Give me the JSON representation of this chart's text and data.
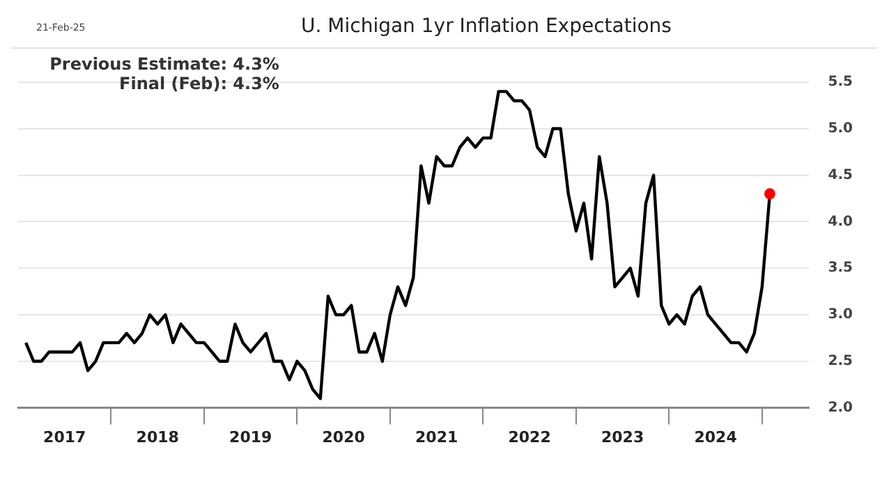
{
  "chart_data": {
    "type": "line",
    "title": "U. Michigan 1yr Inflation Expectations",
    "annotations": [
      "21-Feb-25",
      "Previous Estimate: 4.3%",
      "Final (Feb): 4.3%"
    ],
    "x": [
      "2017-02",
      "2017-03",
      "2017-04",
      "2017-05",
      "2017-06",
      "2017-07",
      "2017-08",
      "2017-09",
      "2017-10",
      "2017-11",
      "2017-12",
      "2018-01",
      "2018-02",
      "2018-03",
      "2018-04",
      "2018-05",
      "2018-06",
      "2018-07",
      "2018-08",
      "2018-09",
      "2018-10",
      "2018-11",
      "2018-12",
      "2019-01",
      "2019-02",
      "2019-03",
      "2019-04",
      "2019-05",
      "2019-06",
      "2019-07",
      "2019-08",
      "2019-09",
      "2019-10",
      "2019-11",
      "2019-12",
      "2020-01",
      "2020-02",
      "2020-03",
      "2020-04",
      "2020-05",
      "2020-06",
      "2020-07",
      "2020-08",
      "2020-09",
      "2020-10",
      "2020-11",
      "2020-12",
      "2021-01",
      "2021-02",
      "2021-03",
      "2021-04",
      "2021-05",
      "2021-06",
      "2021-07",
      "2021-08",
      "2021-09",
      "2021-10",
      "2021-11",
      "2021-12",
      "2022-01",
      "2022-02",
      "2022-03",
      "2022-04",
      "2022-05",
      "2022-06",
      "2022-07",
      "2022-08",
      "2022-09",
      "2022-10",
      "2022-11",
      "2022-12",
      "2023-01",
      "2023-02",
      "2023-03",
      "2023-04",
      "2023-05",
      "2023-06",
      "2023-07",
      "2023-08",
      "2023-09",
      "2023-10",
      "2023-11",
      "2023-12",
      "2024-01",
      "2024-02",
      "2024-03",
      "2024-04",
      "2024-05",
      "2024-06",
      "2024-07",
      "2024-08",
      "2024-09",
      "2024-10",
      "2024-11",
      "2024-12",
      "2025-01",
      "2025-02"
    ],
    "series": [
      {
        "color": "#000000",
        "marker": "none",
        "values": [
          2.7,
          2.5,
          2.5,
          2.6,
          2.6,
          2.6,
          2.6,
          2.7,
          2.4,
          2.5,
          2.7,
          2.7,
          2.7,
          2.8,
          2.7,
          2.8,
          3.0,
          2.9,
          3.0,
          2.7,
          2.9,
          2.8,
          2.7,
          2.7,
          2.6,
          2.5,
          2.5,
          2.9,
          2.7,
          2.6,
          2.7,
          2.8,
          2.5,
          2.5,
          2.3,
          2.5,
          2.4,
          2.2,
          2.1,
          3.2,
          3.0,
          3.0,
          3.1,
          2.6,
          2.6,
          2.8,
          2.5,
          3.0,
          3.3,
          3.1,
          3.4,
          4.6,
          4.2,
          4.7,
          4.6,
          4.6,
          4.8,
          4.9,
          4.8,
          4.9,
          4.9,
          5.4,
          5.4,
          5.3,
          5.3,
          5.2,
          4.8,
          4.7,
          5.0,
          5.0,
          4.3,
          3.9,
          4.2,
          3.6,
          4.7,
          4.2,
          3.3,
          3.4,
          3.5,
          3.2,
          4.2,
          4.5,
          3.1,
          2.9,
          3.0,
          2.9,
          3.2,
          3.3,
          3.0,
          2.9,
          2.8,
          2.7,
          2.7,
          2.6,
          2.8,
          3.3,
          4.3
        ]
      },
      {
        "type": "scatter",
        "color": "#ff0000",
        "marker": "circle",
        "x": [
          "2025-02"
        ],
        "values": [
          4.3
        ]
      }
    ],
    "xlim": [
      "2017-01",
      "2025-07"
    ],
    "xticks": [
      {
        "value": "2017-07",
        "label": "2017"
      },
      {
        "value": "2018-01",
        "label": null
      },
      {
        "value": "2018-07",
        "label": "2018"
      },
      {
        "value": "2019-01",
        "label": null
      },
      {
        "value": "2019-07",
        "label": "2019"
      },
      {
        "value": "2020-01",
        "label": null
      },
      {
        "value": "2020-07",
        "label": "2020"
      },
      {
        "value": "2021-01",
        "label": null
      },
      {
        "value": "2021-07",
        "label": "2021"
      },
      {
        "value": "2022-01",
        "label": null
      },
      {
        "value": "2022-07",
        "label": "2022"
      },
      {
        "value": "2023-01",
        "label": null
      },
      {
        "value": "2023-07",
        "label": "2023"
      },
      {
        "value": "2024-01",
        "label": null
      },
      {
        "value": "2024-07",
        "label": "2024"
      },
      {
        "value": "2025-01",
        "label": null
      }
    ],
    "ylim": [
      2.0,
      5.5
    ],
    "yticks": [
      {
        "value": 2.0,
        "label": "2.0"
      },
      {
        "value": 2.5,
        "label": "2.5"
      },
      {
        "value": 3.0,
        "label": "3.0"
      },
      {
        "value": 3.5,
        "label": "3.5"
      },
      {
        "value": 4.0,
        "label": "4.0"
      },
      {
        "value": 4.5,
        "label": "4.5"
      },
      {
        "value": 5.0,
        "label": "5.0"
      },
      {
        "value": 5.5,
        "label": "5.5"
      }
    ],
    "grid": "y",
    "legend": false,
    "line_style": "solid"
  }
}
